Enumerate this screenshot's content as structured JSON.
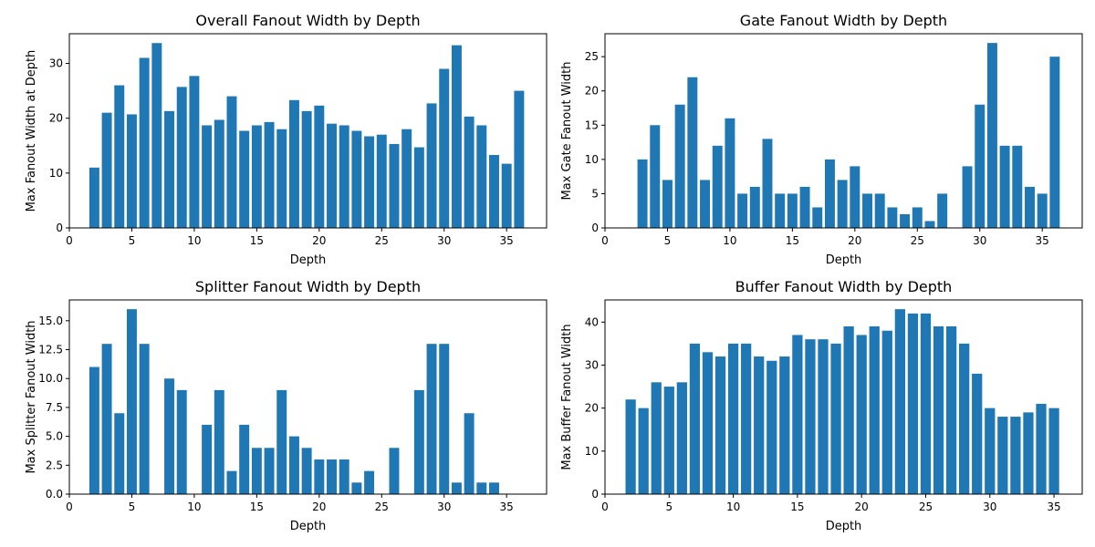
{
  "chart_data": [
    {
      "type": "bar",
      "title": "Overall Fanout Width by Depth",
      "xlabel": "Depth",
      "ylabel": "Max Fanout Width at Depth",
      "xlim": [
        0,
        38.2
      ],
      "ylim": [
        0,
        35.4
      ],
      "xticks": [
        0,
        5,
        10,
        15,
        20,
        25,
        30,
        35
      ],
      "yticks": [
        0,
        10,
        20,
        30
      ],
      "x": [
        2,
        3,
        4,
        5,
        6,
        7,
        8,
        9,
        10,
        11,
        12,
        13,
        14,
        15,
        16,
        17,
        18,
        19,
        20,
        21,
        22,
        23,
        24,
        25,
        26,
        27,
        28,
        29,
        30,
        31,
        32,
        33,
        34,
        35,
        36
      ],
      "values": [
        11,
        21,
        26,
        20.7,
        31,
        33.7,
        21.3,
        25.7,
        27.7,
        18.7,
        19.7,
        24,
        17.7,
        18.7,
        19.3,
        18,
        23.3,
        21.3,
        22.3,
        19,
        18.7,
        17.7,
        16.7,
        17,
        15.3,
        18,
        14.7,
        22.7,
        29,
        33.3,
        20.3,
        18.7,
        13.3,
        11.7,
        25
      ]
    },
    {
      "type": "bar",
      "title": "Gate Fanout Width by Depth",
      "xlabel": "Depth",
      "ylabel": "Max Gate Fanout Width",
      "xlim": [
        0,
        38.2
      ],
      "ylim": [
        0,
        28.35
      ],
      "xticks": [
        0,
        5,
        10,
        15,
        20,
        25,
        30,
        35
      ],
      "yticks": [
        0,
        5,
        10,
        15,
        20,
        25
      ],
      "x": [
        3,
        4,
        5,
        6,
        7,
        8,
        9,
        10,
        11,
        12,
        13,
        14,
        15,
        16,
        17,
        18,
        19,
        20,
        21,
        22,
        23,
        24,
        25,
        26,
        27,
        29,
        30,
        31,
        32,
        33,
        34,
        35,
        36
      ],
      "values": [
        10,
        15,
        7,
        18,
        22,
        7,
        12,
        16,
        5,
        6,
        13,
        5,
        5,
        6,
        3,
        10,
        7,
        9,
        5,
        5,
        3,
        2,
        3,
        1,
        5,
        9,
        18,
        27,
        12,
        12,
        6,
        5,
        25
      ]
    },
    {
      "type": "bar",
      "title": "Splitter Fanout Width by Depth",
      "xlabel": "Depth",
      "ylabel": "Max Splitter Fanout Width",
      "xlim": [
        0,
        38.2
      ],
      "ylim": [
        0,
        16.8
      ],
      "xticks": [
        0,
        5,
        10,
        15,
        20,
        25,
        30,
        35
      ],
      "yticks": [
        "0.0",
        "2.5",
        "5.0",
        "7.5",
        "10.0",
        "12.5",
        "15.0"
      ],
      "x": [
        2,
        3,
        4,
        5,
        6,
        8,
        9,
        11,
        12,
        13,
        14,
        15,
        16,
        17,
        18,
        19,
        20,
        21,
        22,
        23,
        24,
        26,
        28,
        29,
        30,
        31,
        32,
        33,
        34
      ],
      "values": [
        11,
        13,
        7,
        16,
        13,
        10,
        9,
        6,
        9,
        2,
        6,
        4,
        4,
        9,
        5,
        4,
        3,
        3,
        3,
        1,
        2,
        4,
        9,
        13,
        13,
        1,
        7,
        1,
        1
      ]
    },
    {
      "type": "bar",
      "title": "Buffer Fanout Width by Depth",
      "xlabel": "Depth",
      "ylabel": "Max Buffer Fanout Width",
      "xlim": [
        0,
        37.2
      ],
      "ylim": [
        0,
        45.15
      ],
      "xticks": [
        0,
        5,
        10,
        15,
        20,
        25,
        30,
        35
      ],
      "yticks": [
        0,
        10,
        20,
        30,
        40
      ],
      "x": [
        2,
        3,
        4,
        5,
        6,
        7,
        8,
        9,
        10,
        11,
        12,
        13,
        14,
        15,
        16,
        17,
        18,
        19,
        20,
        21,
        22,
        23,
        24,
        25,
        26,
        27,
        28,
        29,
        30,
        31,
        32,
        33,
        34,
        35
      ],
      "values": [
        22,
        20,
        26,
        25,
        26,
        35,
        33,
        32,
        35,
        35,
        32,
        31,
        32,
        37,
        36,
        36,
        35,
        39,
        37,
        39,
        38,
        43,
        42,
        42,
        39,
        39,
        35,
        28,
        20,
        18,
        18,
        19,
        21,
        20
      ]
    }
  ]
}
